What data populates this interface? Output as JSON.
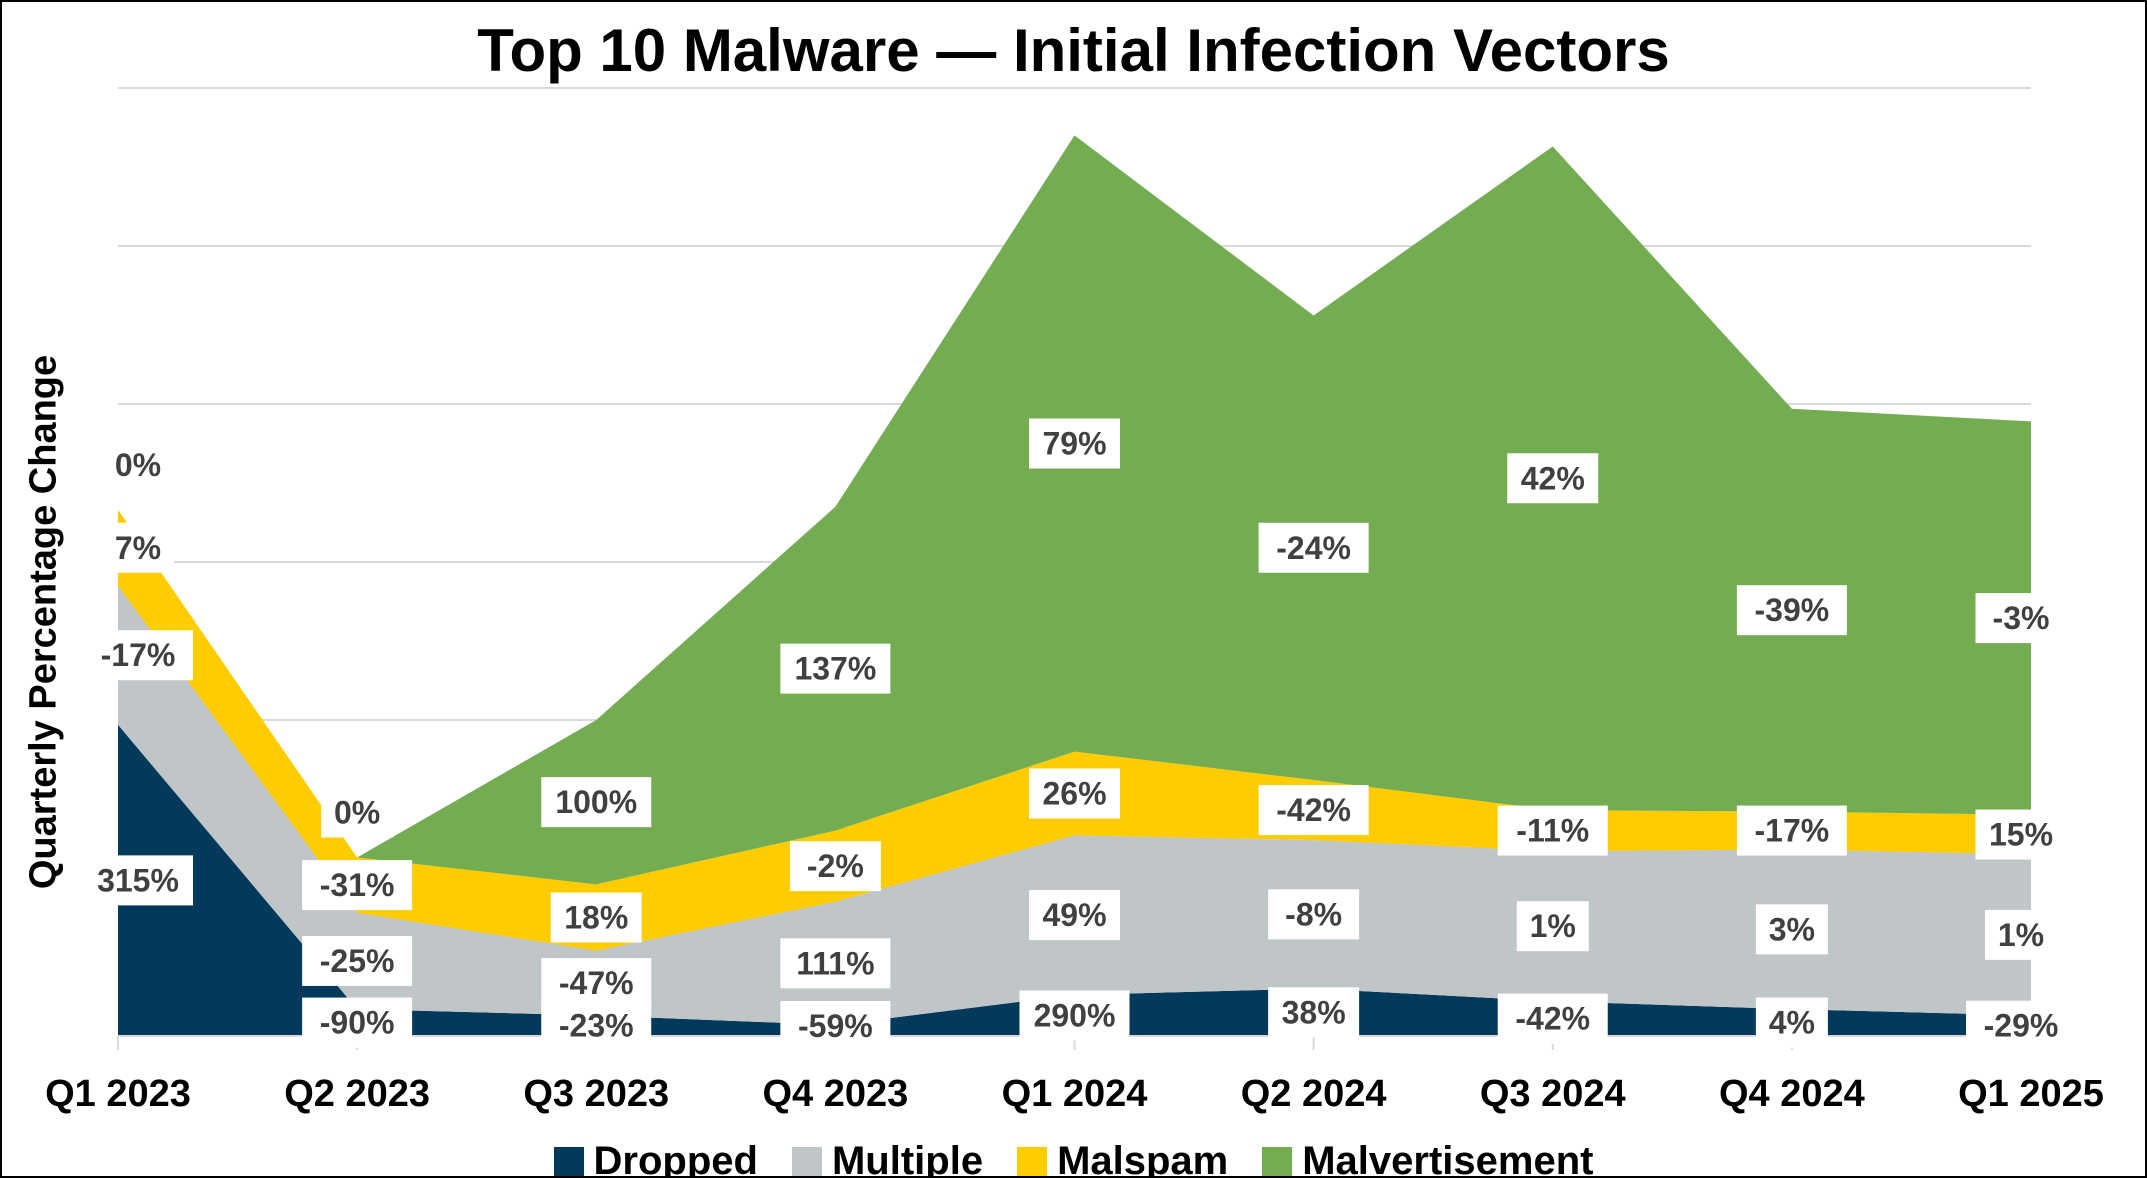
{
  "chart_data": {
    "type": "area",
    "stacked": true,
    "title": "Top 10 Malware — Initial Infection Vectors",
    "ylabel": "Quarterly Percentage Change",
    "xlabel": "",
    "grid": true,
    "legend_position": "bottom",
    "categories": [
      "Q1 2023",
      "Q2 2023",
      "Q3 2023",
      "Q4 2023",
      "Q1 2024",
      "Q2 2024",
      "Q3 2024",
      "Q4 2024",
      "Q1 2025"
    ],
    "ylim": [
      0,
      600
    ],
    "series": [
      {
        "name": "Dropped",
        "color": "#03395A",
        "values": [
          197,
          17,
          13,
          7,
          26,
          30,
          22,
          17,
          13
        ],
        "labels": [
          "315%",
          "-90%",
          "-23%",
          "-59%",
          "290%",
          "38%",
          "-42%",
          "4%",
          "-29%"
        ]
      },
      {
        "name": "Multiple",
        "color": "#C0C5C8",
        "values": [
          88,
          61,
          41,
          78,
          101,
          94,
          95,
          101,
          102
        ],
        "labels": [
          "-17%",
          "-25%",
          "-47%",
          "111%",
          "49%",
          "-8%",
          "1%",
          "3%",
          "1%"
        ]
      },
      {
        "name": "Malspam",
        "color": "#FFCC00",
        "values": [
          48,
          35,
          42,
          45,
          53,
          38,
          26,
          24,
          25
        ],
        "labels": [
          "7%",
          "-31%",
          "18%",
          "-2%",
          "26%",
          "-42%",
          "-11%",
          "-17%",
          "15%"
        ]
      },
      {
        "name": "Malvertisement",
        "color": "#74AC52",
        "values": [
          0,
          0,
          104,
          205,
          390,
          294,
          420,
          255,
          249
        ],
        "labels": [
          "0%",
          "0%",
          "100%",
          "137%",
          "79%",
          "-24%",
          "42%",
          "-39%",
          "-3%"
        ]
      }
    ]
  }
}
